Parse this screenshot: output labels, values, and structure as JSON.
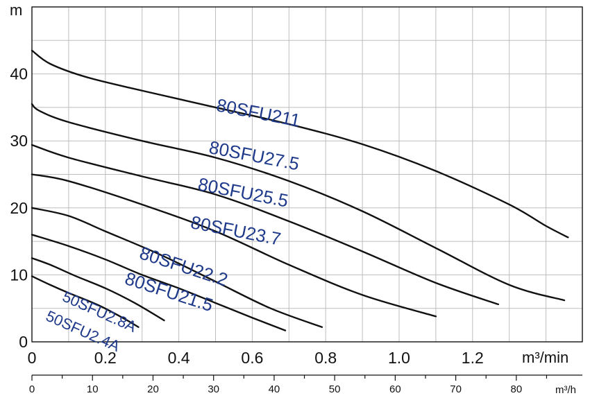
{
  "chart_data": {
    "type": "line",
    "ylabel": "m",
    "xlabel": "m³/min",
    "x2label": "m³/h",
    "xlim": [
      0,
      1.5
    ],
    "ylim": [
      0,
      50
    ],
    "x_ticks": [
      "0",
      "0.2",
      "0.4",
      "0.6",
      "0.8",
      "1.0",
      "1.2"
    ],
    "x_tick_values": [
      0,
      0.2,
      0.4,
      0.6,
      0.8,
      1.0,
      1.2
    ],
    "y_ticks": [
      "0",
      "10",
      "20",
      "30",
      "40"
    ],
    "y_tick_values": [
      0,
      10,
      20,
      30,
      40
    ],
    "x2_ticks": [
      "0",
      "10",
      "20",
      "30",
      "40",
      "50",
      "60",
      "70",
      "80"
    ],
    "x2_tick_values": [
      0,
      10,
      20,
      30,
      40,
      50,
      60,
      70,
      80
    ],
    "x2_lim": [
      0,
      90
    ],
    "grid": true,
    "series": [
      {
        "name": "80SFU211",
        "label_x": 0.5,
        "label_y": 34.5,
        "label_angle": 11,
        "x": [
          0,
          0.05,
          0.15,
          0.3,
          0.5,
          0.7,
          0.9,
          1.1,
          1.3,
          1.4,
          1.46
        ],
        "y": [
          43.5,
          41.5,
          39.5,
          37.5,
          35.0,
          32.5,
          29.5,
          25.5,
          20.5,
          17.3,
          15.6
        ]
      },
      {
        "name": "80SFU27.5",
        "label_x": 0.48,
        "label_y": 28.2,
        "label_angle": 11,
        "x": [
          0,
          0.02,
          0.1,
          0.3,
          0.5,
          0.7,
          0.9,
          1.1,
          1.3,
          1.45
        ],
        "y": [
          35.5,
          34.5,
          32.8,
          30.0,
          27.5,
          24.0,
          19.5,
          14.0,
          8.5,
          6.2
        ]
      },
      {
        "name": "80SFU25.5",
        "label_x": 0.45,
        "label_y": 22.7,
        "label_angle": 11,
        "x": [
          0,
          0.1,
          0.3,
          0.5,
          0.7,
          0.9,
          1.1,
          1.27
        ],
        "y": [
          29.4,
          27.5,
          24.7,
          22.0,
          18.0,
          13.5,
          8.8,
          5.6
        ]
      },
      {
        "name": "80SFU23.7",
        "label_x": 0.43,
        "label_y": 17.0,
        "label_angle": 11,
        "x": [
          0,
          0.1,
          0.3,
          0.5,
          0.7,
          0.9,
          1.1
        ],
        "y": [
          25.0,
          24.0,
          20.5,
          16.5,
          11.5,
          7.0,
          3.8
        ]
      },
      {
        "name": "80SFU22.2",
        "label_x": 0.29,
        "label_y": 12.5,
        "label_angle": 18,
        "x": [
          0,
          0.1,
          0.2,
          0.35,
          0.5,
          0.65,
          0.79
        ],
        "y": [
          20.0,
          18.8,
          16.5,
          13.0,
          9.0,
          5.0,
          2.2
        ]
      },
      {
        "name": "80SFU21.5",
        "label_x": 0.25,
        "label_y": 8.7,
        "label_angle": 18,
        "x": [
          0,
          0.1,
          0.2,
          0.3,
          0.4,
          0.5,
          0.6,
          0.69
        ],
        "y": [
          16.0,
          14.3,
          12.3,
          10.0,
          8.0,
          5.8,
          3.6,
          1.7
        ]
      },
      {
        "name": "50SFU2.8A",
        "label_x": 0.08,
        "label_y": 6.2,
        "label_angle": 24,
        "x": [
          0,
          0.05,
          0.12,
          0.2,
          0.28,
          0.36
        ],
        "y": [
          12.5,
          11.5,
          9.8,
          8.0,
          5.8,
          3.2
        ]
      },
      {
        "name": "50SFU2.4A",
        "label_x": 0.035,
        "label_y": 3.3,
        "label_angle": 24,
        "x": [
          0,
          0.05,
          0.1,
          0.18,
          0.25,
          0.29
        ],
        "y": [
          9.8,
          8.5,
          7.3,
          5.5,
          3.5,
          2.2
        ]
      }
    ]
  }
}
